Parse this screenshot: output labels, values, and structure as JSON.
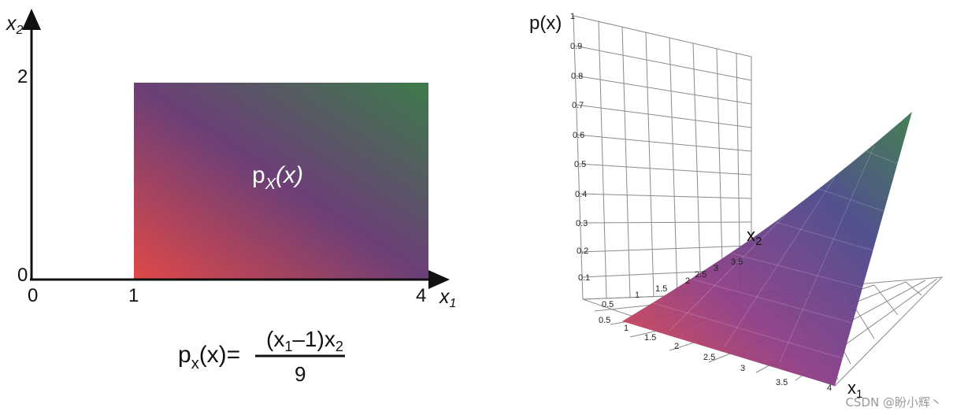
{
  "left_panel": {
    "y_axis_label": "x",
    "y_axis_sub": "2",
    "x_axis_label": "x",
    "x_axis_sub": "1",
    "y_ticks": [
      "2",
      "0"
    ],
    "x_ticks": [
      "0",
      "1",
      "4"
    ],
    "region_label_main": "p",
    "region_label_sub": "X",
    "region_label_arg": "(x)",
    "formula_lhs_main": "p",
    "formula_lhs_sub": "x",
    "formula_lhs_rest": "(x)=",
    "formula_numerator_a": "(x",
    "formula_numerator_sub1": "1",
    "formula_numerator_b": "–1)x",
    "formula_numerator_sub2": "2",
    "formula_denominator": "9",
    "gradient_colors": [
      "#e04848",
      "#6b3f77",
      "#3d7b4a"
    ]
  },
  "right_panel": {
    "z_axis_label": "p(x)",
    "z_ticks": [
      "1",
      "0.9",
      "0.8",
      "0.7",
      "0.6",
      "0.5",
      "0.4",
      "0.3",
      "0.2",
      "0.1"
    ],
    "x2_axis_label": "x",
    "x2_axis_sub": "2",
    "x2_ticks": [
      "0.5",
      "1",
      "1.5",
      "2",
      "2.5",
      "3",
      "3.5"
    ],
    "x1_axis_label": "x",
    "x1_axis_sub": "1",
    "x1_ticks": [
      "0.5",
      "1",
      "1.5",
      "2",
      "2.5",
      "3",
      "3.5",
      "4"
    ],
    "surface_colors": [
      "#e04848",
      "#8e3e88",
      "#4a4a8a",
      "#3d7b4a"
    ]
  },
  "watermark": "CSDN @盼小辉丶"
}
